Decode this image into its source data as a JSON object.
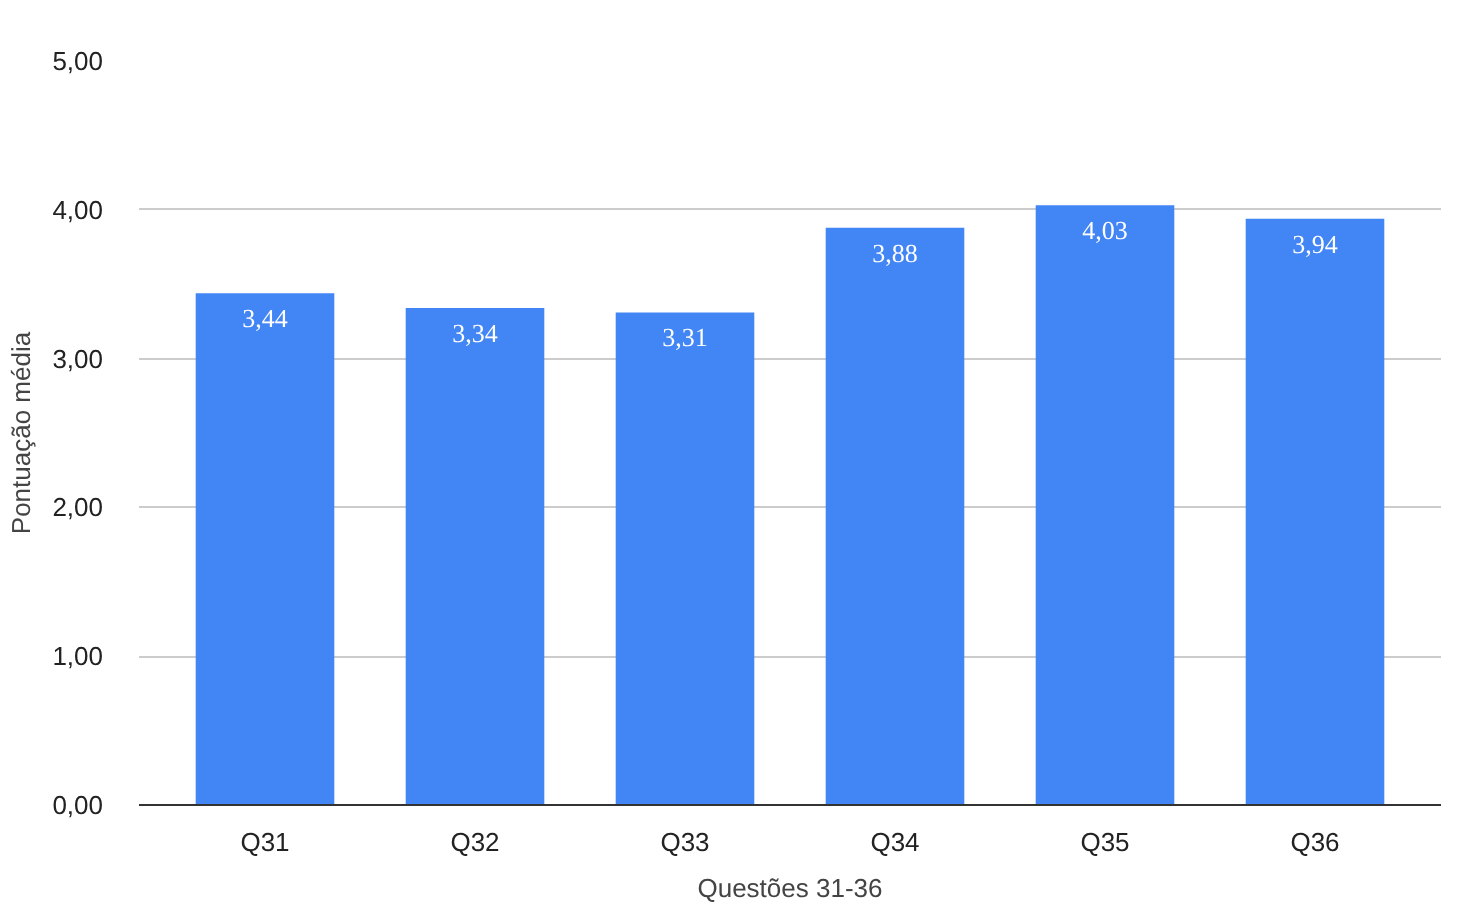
{
  "chart_data": {
    "type": "bar",
    "xlabel": "Questões 31-36",
    "ylabel": "Pontuação média",
    "categories": [
      "Q31",
      "Q32",
      "Q33",
      "Q34",
      "Q35",
      "Q36"
    ],
    "values": [
      3.44,
      3.34,
      3.31,
      3.88,
      4.03,
      3.94
    ],
    "value_labels": [
      "3,44",
      "3,34",
      "3,31",
      "3,88",
      "4,03",
      "3,94"
    ],
    "color": "#4285f4",
    "ylim": [
      0,
      5
    ],
    "yticks": [
      {
        "value": 0,
        "label": "0,00"
      },
      {
        "value": 1,
        "label": "1,00"
      },
      {
        "value": 2,
        "label": "2,00"
      },
      {
        "value": 3,
        "label": "3,00"
      },
      {
        "value": 4,
        "label": "4,00"
      },
      {
        "value": 5,
        "label": "5,00"
      }
    ],
    "grid": "y"
  }
}
